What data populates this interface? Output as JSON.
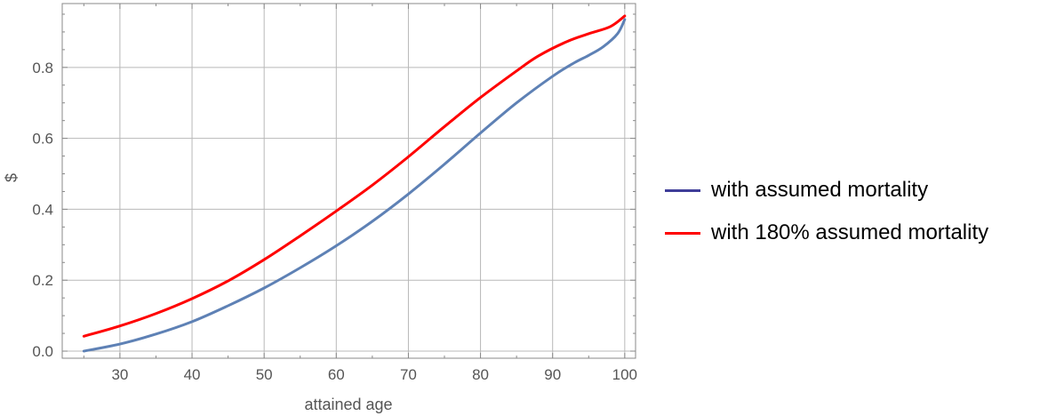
{
  "chart_data": {
    "type": "line",
    "xlabel": "attained age",
    "ylabel": "$",
    "xlim": [
      22,
      101.5
    ],
    "ylim": [
      -0.02,
      0.98
    ],
    "xticks": [
      30,
      40,
      50,
      60,
      70,
      80,
      90,
      100
    ],
    "yticks": [
      0.0,
      0.2,
      0.4,
      0.6,
      0.8
    ],
    "ytick_labels": [
      "0.0",
      "0.2",
      "0.4",
      "0.6",
      "0.8"
    ],
    "grid": true,
    "legend_position": "right",
    "series": [
      {
        "name": "with assumed mortality",
        "color": "#5e81b5",
        "legend_color": "#3f3d99",
        "x": [
          25,
          30,
          35,
          40,
          45,
          50,
          55,
          60,
          65,
          70,
          75,
          80,
          85,
          90,
          93,
          95,
          97,
          99,
          100
        ],
        "y": [
          0.0,
          0.02,
          0.048,
          0.083,
          0.128,
          0.178,
          0.235,
          0.297,
          0.366,
          0.443,
          0.527,
          0.615,
          0.7,
          0.775,
          0.813,
          0.834,
          0.858,
          0.895,
          0.935
        ]
      },
      {
        "name": "with 180% assumed mortality",
        "color": "#ff0000",
        "legend_color": "#ff0000",
        "x": [
          25,
          30,
          35,
          40,
          45,
          50,
          55,
          60,
          65,
          70,
          75,
          80,
          85,
          88,
          92,
          95,
          98,
          100
        ],
        "y": [
          0.042,
          0.071,
          0.106,
          0.148,
          0.198,
          0.258,
          0.325,
          0.395,
          0.468,
          0.548,
          0.633,
          0.715,
          0.79,
          0.832,
          0.873,
          0.895,
          0.915,
          0.945
        ]
      }
    ]
  }
}
